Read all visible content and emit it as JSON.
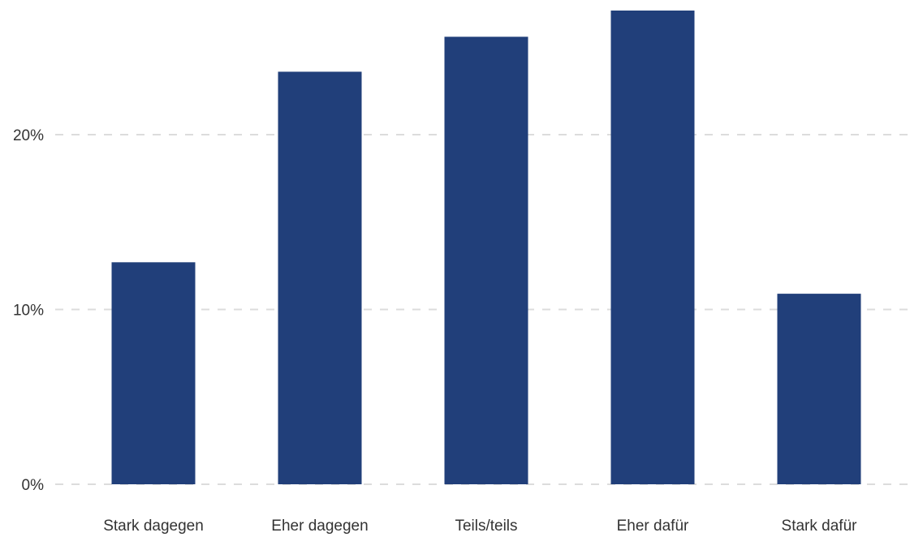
{
  "chart_data": {
    "type": "bar",
    "title": "",
    "xlabel": "",
    "ylabel": "",
    "categories": [
      "Stark dagegen",
      "Eher dagegen",
      "Teils/teils",
      "Eher dafür",
      "Stark dafür"
    ],
    "values": [
      12.7,
      23.6,
      25.6,
      27.1,
      10.9
    ],
    "ylim": [
      0,
      27.1
    ],
    "yticks": [
      0,
      10,
      20
    ],
    "ytick_labels": [
      "0%",
      "10%",
      "20%"
    ],
    "grid": true,
    "legend": "none",
    "colors": {
      "bar": "#213f7a",
      "grid": "#dcdcdc",
      "text": "#333333"
    }
  }
}
